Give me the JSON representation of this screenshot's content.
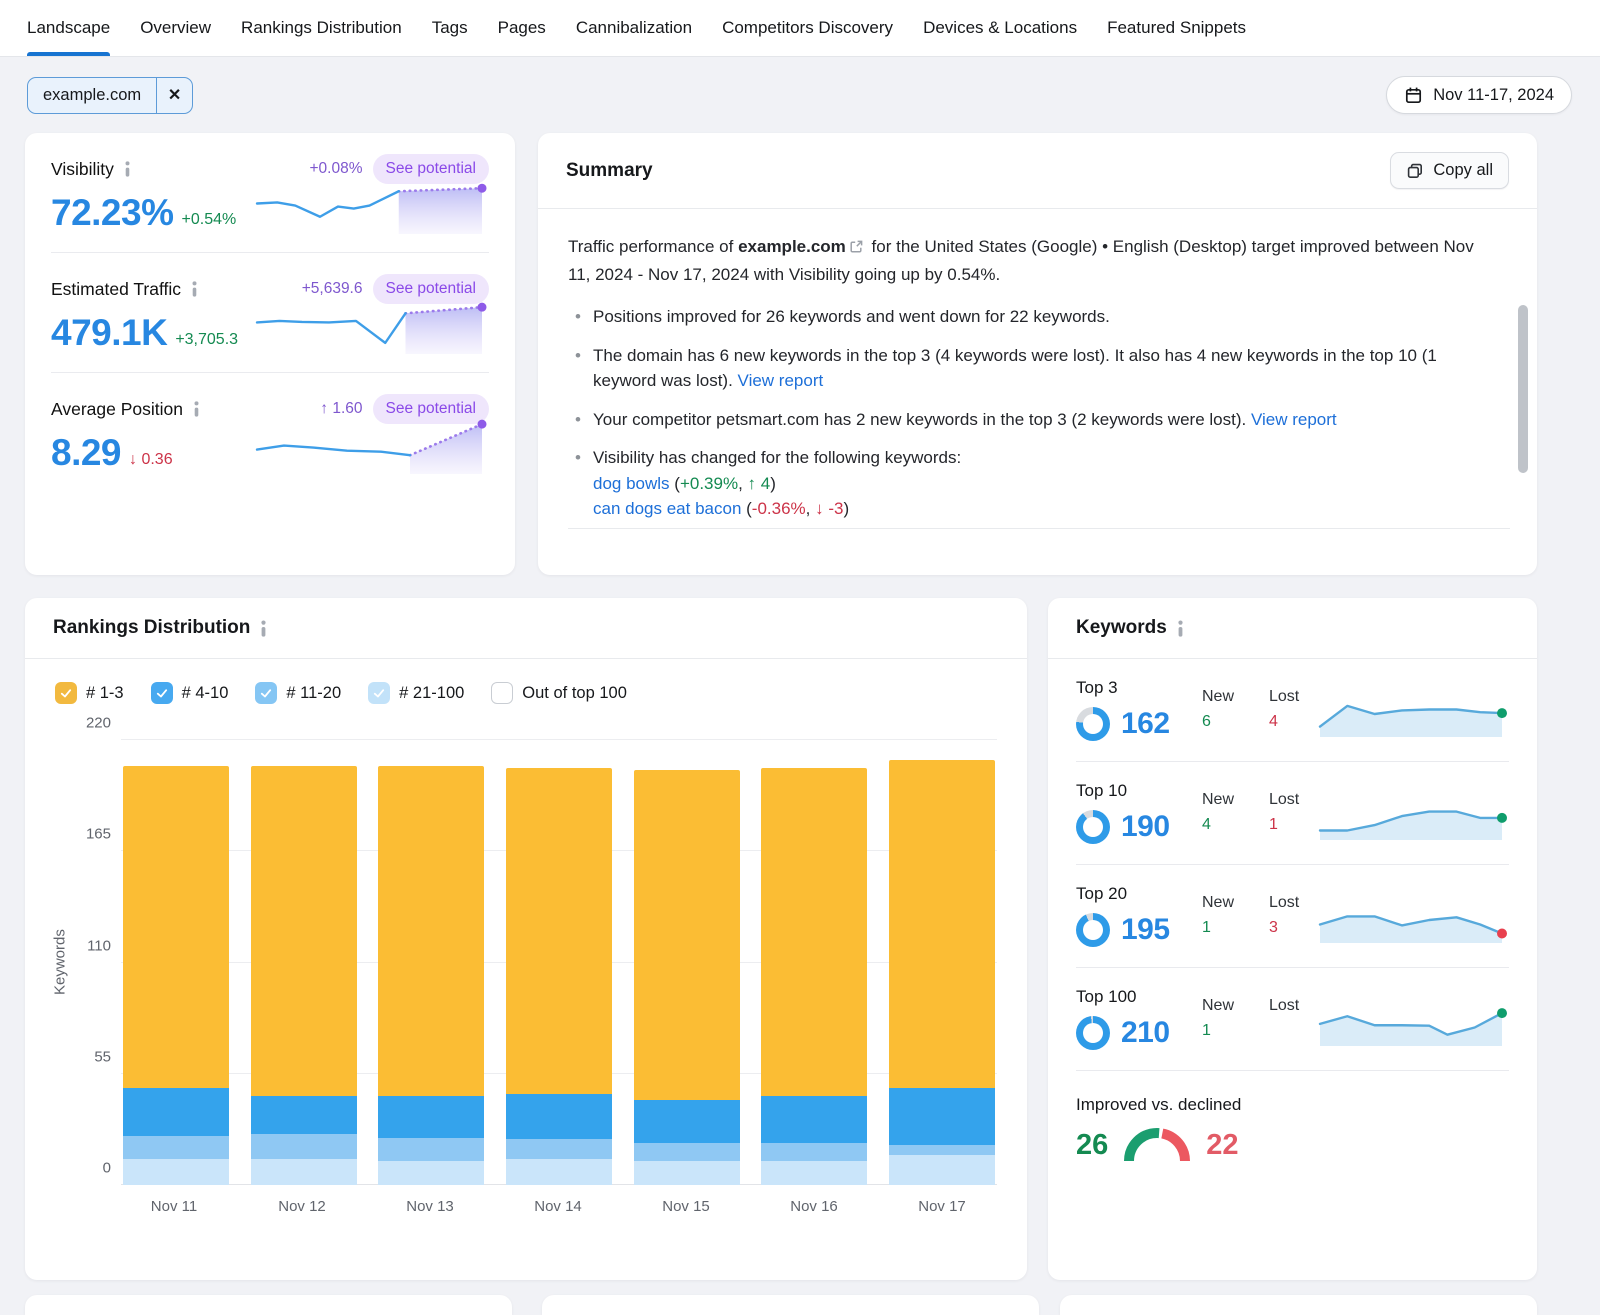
{
  "nav": {
    "tabs": [
      {
        "label": "Landscape",
        "active": true
      },
      {
        "label": "Overview",
        "active": false
      },
      {
        "label": "Rankings Distribution",
        "active": false
      },
      {
        "label": "Tags",
        "active": false
      },
      {
        "label": "Pages",
        "active": false
      },
      {
        "label": "Cannibalization",
        "active": false
      },
      {
        "label": "Competitors Discovery",
        "active": false
      },
      {
        "label": "Devices & Locations",
        "active": false
      },
      {
        "label": "Featured Snippets",
        "active": false
      }
    ]
  },
  "filters": {
    "domain": "example.com",
    "remove_icon": "✕",
    "date_range": "Nov 11-17, 2024"
  },
  "colors": {
    "accent_blue": "#2787E1",
    "active_tab": "#1774D1",
    "green": "#148A51",
    "red": "#CC3348",
    "purple": "#8A49E8",
    "link": "#1D6FD8"
  },
  "metrics": [
    {
      "label": "Visibility",
      "potential_change": "+0.08%",
      "badge": "See potential",
      "value": "72.23%",
      "delta": "+0.54%",
      "delta_color": "green",
      "chart": 1
    },
    {
      "label": "Estimated Traffic",
      "potential_change": "+5,639.6",
      "badge": "See potential",
      "value": "479.1K",
      "delta": "+3,705.3",
      "delta_color": "green",
      "chart": 2
    },
    {
      "label": "Average Position",
      "potential_change": "↑ 1.60",
      "badge": "See potential",
      "value": "8.29",
      "delta": "↓ 0.36",
      "delta_color": "red",
      "chart": 3
    }
  ],
  "summary": {
    "title": "Summary",
    "copy_all": "Copy all",
    "intro": [
      {
        "t": "Traffic performance of "
      },
      {
        "t": "example.com",
        "s": "b"
      },
      {
        "s": "ext"
      },
      {
        "t": " for the United States (Google) • English (Desktop) target improved between Nov 11, 2024 - Nov 17, 2024 with Visibility going up by 0.54%."
      }
    ],
    "bullets": [
      {
        "lines": [
          [
            {
              "t": "Positions improved for 26 keywords and went down for 22 keywords."
            }
          ]
        ]
      },
      {
        "lines": [
          [
            {
              "t": "The domain has 6 new keywords in the top 3 (4 keywords were lost). It also has 4 new keywords in the top 10 (1 keyword was lost). "
            },
            {
              "t": "View report",
              "s": "link"
            }
          ]
        ]
      },
      {
        "lines": [
          [
            {
              "t": "Your competitor petsmart.com has 2 new keywords in the top 3 (2 keywords were lost). "
            },
            {
              "t": "View report",
              "s": "link"
            }
          ]
        ]
      },
      {
        "lines": [
          [
            {
              "t": "Visibility has changed for the following keywords:"
            }
          ],
          [
            {
              "t": "dog bowls",
              "s": "link"
            },
            {
              "t": " ("
            },
            {
              "t": "+0.39%",
              "s": "green"
            },
            {
              "t": ", "
            },
            {
              "t": "↑ 4",
              "s": "green"
            },
            {
              "t": ")"
            }
          ],
          [
            {
              "t": "can dogs eat bacon",
              "s": "link"
            },
            {
              "t": " ("
            },
            {
              "t": "-0.36%",
              "s": "red"
            },
            {
              "t": ", "
            },
            {
              "t": "↓ -3",
              "s": "red"
            },
            {
              "t": ")"
            }
          ]
        ]
      }
    ]
  },
  "rankings": {
    "title": "Rankings Distribution",
    "legend": [
      {
        "label": "# 1-3",
        "color": "#F2B93F",
        "checked": true
      },
      {
        "label": "# 4-10",
        "color": "#47A9F0",
        "checked": true
      },
      {
        "label": "# 11-20",
        "color": "#85C6F4",
        "checked": true
      },
      {
        "label": "# 21-100",
        "color": "#C2E2F9",
        "checked": true
      },
      {
        "label": "Out of top 100",
        "color": "",
        "checked": false
      }
    ]
  },
  "keywords": {
    "title": "Keywords",
    "rows": [
      {
        "label": "Top 3",
        "value": "162",
        "pct": 77,
        "new_label": "New",
        "lost_label": "Lost",
        "new": "6",
        "lost": "4",
        "chart": 4
      },
      {
        "label": "Top 10",
        "value": "190",
        "pct": 90,
        "new_label": "New",
        "lost_label": "Lost",
        "new": "4",
        "lost": "1",
        "chart": 5
      },
      {
        "label": "Top 20",
        "value": "195",
        "pct": 93,
        "new_label": "New",
        "lost_label": "Lost",
        "new": "1",
        "lost": "3",
        "chart": 6
      },
      {
        "label": "Top 100",
        "value": "210",
        "pct": 98,
        "new_label": "New",
        "lost_label": "Lost",
        "new": "1",
        "lost": "",
        "chart": 7
      }
    ],
    "improved": {
      "label": "Improved vs. declined",
      "improved": "26",
      "declined": "22"
    }
  },
  "chart_data": [
    {
      "id": "rankings-distribution",
      "type": "bar",
      "stacked": true,
      "title": "Rankings Distribution",
      "xlabel": "",
      "ylabel": "Keywords",
      "ylim": [
        0,
        220
      ],
      "yticks": [
        0,
        55,
        110,
        165,
        220
      ],
      "grid": true,
      "legend_position": "top",
      "categories": [
        "Nov 11",
        "Nov 12",
        "Nov 13",
        "Nov 14",
        "Nov 15",
        "Nov 16",
        "Nov 17"
      ],
      "series": [
        {
          "name": "# 21-100",
          "color": "#CAE5FA",
          "values": [
            13,
            13,
            12,
            13,
            12,
            12,
            15
          ]
        },
        {
          "name": "# 11-20",
          "color": "#8FC8F3",
          "values": [
            11,
            12,
            11,
            10,
            9,
            9,
            5
          ]
        },
        {
          "name": "# 4-10",
          "color": "#34A3EC",
          "values": [
            24,
            19,
            21,
            22,
            21,
            23,
            28
          ]
        },
        {
          "name": "# 1-3",
          "color": "#FBBD34",
          "values": [
            159,
            163,
            163,
            161,
            163,
            162,
            162
          ]
        }
      ]
    },
    {
      "id": "visibility-trend",
      "type": "line",
      "points": [
        [
          0,
          50
        ],
        [
          9,
          52
        ],
        [
          17,
          46
        ],
        [
          28,
          24
        ],
        [
          36,
          44
        ],
        [
          43,
          40
        ],
        [
          50,
          46
        ],
        [
          63,
          74
        ]
      ],
      "potential": [
        [
          63,
          74
        ],
        [
          100,
          80
        ]
      ],
      "line_color": "#3E9EE8",
      "dot": "#8E5BE8"
    },
    {
      "id": "traffic-trend",
      "type": "line",
      "points": [
        [
          0,
          52
        ],
        [
          10,
          55
        ],
        [
          20,
          53
        ],
        [
          32,
          52
        ],
        [
          44,
          55
        ],
        [
          57,
          12
        ],
        [
          66,
          70
        ]
      ],
      "potential": [
        [
          66,
          70
        ],
        [
          100,
          82
        ]
      ],
      "line_color": "#3E9EE8",
      "dot": "#8E5BE8"
    },
    {
      "id": "position-trend",
      "type": "line",
      "points": [
        [
          0,
          38
        ],
        [
          12,
          46
        ],
        [
          25,
          42
        ],
        [
          40,
          36
        ],
        [
          55,
          34
        ],
        [
          68,
          27
        ]
      ],
      "potential": [
        [
          68,
          27
        ],
        [
          100,
          88
        ]
      ],
      "line_color": "#3E9EE8",
      "dot": "#8E5BE8"
    },
    {
      "id": "top3-trend",
      "type": "line",
      "area": true,
      "points": [
        [
          0,
          12
        ],
        [
          15,
          58
        ],
        [
          30,
          40
        ],
        [
          45,
          48
        ],
        [
          60,
          50
        ],
        [
          75,
          50
        ],
        [
          88,
          44
        ],
        [
          100,
          42
        ]
      ],
      "line_color": "#57A9DB",
      "dot": "#0F9D6C"
    },
    {
      "id": "top10-trend",
      "type": "line",
      "area": true,
      "points": [
        [
          0,
          10
        ],
        [
          15,
          10
        ],
        [
          30,
          22
        ],
        [
          45,
          42
        ],
        [
          60,
          52
        ],
        [
          75,
          52
        ],
        [
          88,
          38
        ],
        [
          100,
          38
        ]
      ],
      "line_color": "#57A9DB",
      "dot": "#0F9D6C"
    },
    {
      "id": "top20-trend",
      "type": "line",
      "area": true,
      "points": [
        [
          0,
          30
        ],
        [
          15,
          48
        ],
        [
          30,
          48
        ],
        [
          45,
          28
        ],
        [
          60,
          40
        ],
        [
          75,
          46
        ],
        [
          88,
          30
        ],
        [
          100,
          10
        ]
      ],
      "line_color": "#57A9DB",
      "dot": "#E8404E"
    },
    {
      "id": "top100-trend",
      "type": "line",
      "area": true,
      "points": [
        [
          0,
          38
        ],
        [
          15,
          55
        ],
        [
          30,
          35
        ],
        [
          45,
          35
        ],
        [
          60,
          34
        ],
        [
          70,
          14
        ],
        [
          85,
          30
        ],
        [
          100,
          62
        ]
      ],
      "line_color": "#57A9DB",
      "dot": "#0F9D6C"
    },
    {
      "id": "improved-vs-declined",
      "type": "gauge",
      "improved": 26,
      "declined": 22,
      "improved_color": "#1B9E6F",
      "declined_color": "#EC5860"
    }
  ]
}
